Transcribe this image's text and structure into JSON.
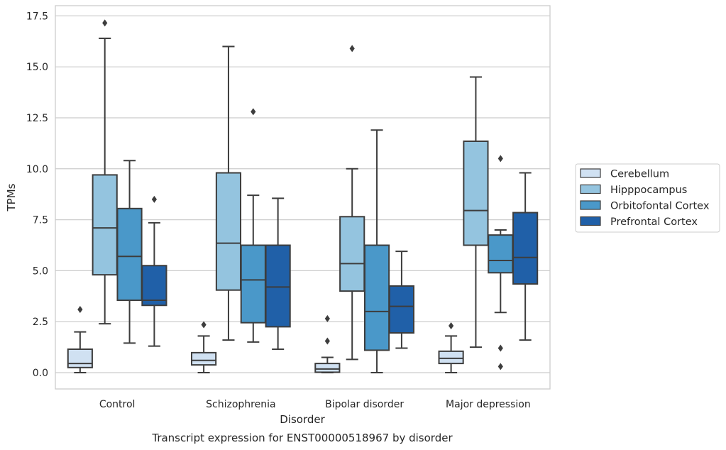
{
  "chart_data": {
    "type": "boxplot",
    "title": "",
    "xlabel": "Disorder",
    "ylabel": "TPMs",
    "caption": "Transcript expression for ENST00000518967 by disorder",
    "ylim": [
      -0.8,
      18.0
    ],
    "yticks": [
      "0.0",
      "2.5",
      "5.0",
      "7.5",
      "10.0",
      "12.5",
      "15.0",
      "17.5"
    ],
    "grid": "horizontal",
    "legend_position": "right",
    "categories": [
      "Control",
      "Schizophrenia",
      "Bipolar disorder",
      "Major depression"
    ],
    "series": [
      {
        "name": "Cerebellum",
        "color": "#d0e1f2",
        "boxes": [
          {
            "whislo": 0.0,
            "q1": 0.25,
            "med": 0.45,
            "q3": 1.15,
            "whishi": 2.0,
            "fliers": [
              3.1
            ]
          },
          {
            "whislo": 0.0,
            "q1": 0.38,
            "med": 0.6,
            "q3": 0.98,
            "whishi": 1.8,
            "fliers": [
              2.35
            ]
          },
          {
            "whislo": 0.0,
            "q1": 0.02,
            "med": 0.18,
            "q3": 0.45,
            "whishi": 0.75,
            "fliers": [
              1.55,
              2.65
            ]
          },
          {
            "whislo": 0.0,
            "q1": 0.45,
            "med": 0.7,
            "q3": 1.05,
            "whishi": 1.8,
            "fliers": [
              2.3
            ]
          }
        ]
      },
      {
        "name": "Hipppocampus",
        "color": "#94c4df",
        "boxes": [
          {
            "whislo": 2.4,
            "q1": 4.8,
            "med": 7.1,
            "q3": 9.7,
            "whishi": 16.4,
            "fliers": [
              17.15
            ]
          },
          {
            "whislo": 1.6,
            "q1": 4.05,
            "med": 6.35,
            "q3": 9.8,
            "whishi": 16.0,
            "fliers": []
          },
          {
            "whislo": 0.65,
            "q1": 4.0,
            "med": 5.35,
            "q3": 7.65,
            "whishi": 10.0,
            "fliers": [
              15.9
            ]
          },
          {
            "whislo": 1.25,
            "q1": 6.25,
            "med": 7.95,
            "q3": 11.35,
            "whishi": 14.5,
            "fliers": []
          }
        ]
      },
      {
        "name": "Orbitofontal Cortex",
        "color": "#4a98c9",
        "boxes": [
          {
            "whislo": 1.45,
            "q1": 3.55,
            "med": 5.7,
            "q3": 8.05,
            "whishi": 10.4,
            "fliers": []
          },
          {
            "whislo": 1.5,
            "q1": 2.45,
            "med": 4.55,
            "q3": 6.25,
            "whishi": 8.7,
            "fliers": [
              12.8
            ]
          },
          {
            "whislo": 0.0,
            "q1": 1.1,
            "med": 3.0,
            "q3": 6.25,
            "whishi": 11.9,
            "fliers": []
          },
          {
            "whislo": 2.95,
            "q1": 4.9,
            "med": 5.5,
            "q3": 6.75,
            "whishi": 7.0,
            "fliers": [
              10.5,
              1.2,
              0.3
            ]
          }
        ]
      },
      {
        "name": "Prefrontal Cortex",
        "color": "#2060a8",
        "boxes": [
          {
            "whislo": 1.3,
            "q1": 3.3,
            "med": 3.55,
            "q3": 5.25,
            "whishi": 7.35,
            "fliers": [
              8.5
            ]
          },
          {
            "whislo": 1.15,
            "q1": 2.25,
            "med": 4.2,
            "q3": 6.25,
            "whishi": 8.55,
            "fliers": []
          },
          {
            "whislo": 1.2,
            "q1": 1.95,
            "med": 3.25,
            "q3": 4.25,
            "whishi": 5.95,
            "fliers": []
          },
          {
            "whislo": 1.6,
            "q1": 4.35,
            "med": 5.65,
            "q3": 7.85,
            "whishi": 9.8,
            "fliers": []
          }
        ]
      }
    ]
  }
}
